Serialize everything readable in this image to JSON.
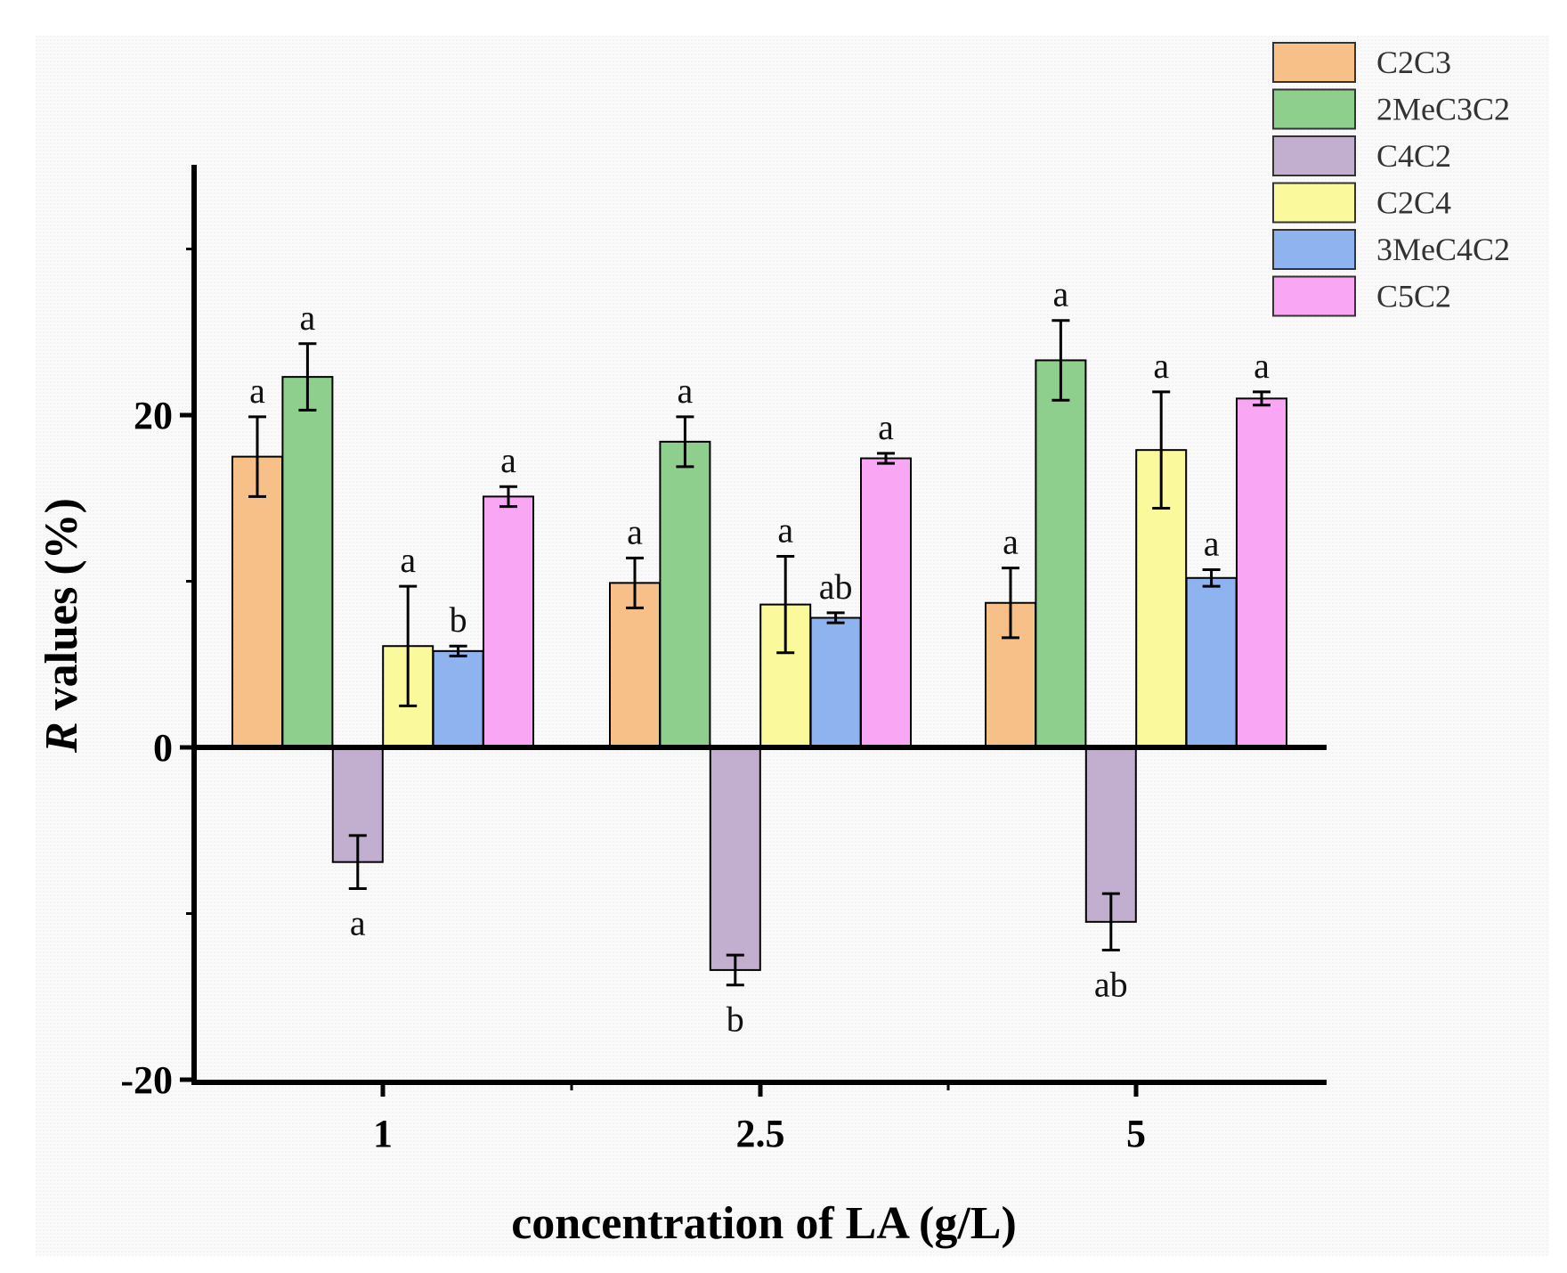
{
  "chart_data": {
    "type": "bar",
    "title": "",
    "xlabel": "concentration of LA (g/L)",
    "ylabel_italic": "R",
    "ylabel_rest": " values (%)",
    "ylim": [
      -20,
      35
    ],
    "yticks": [
      -20,
      0,
      20
    ],
    "ytick_labels": [
      "-20",
      "0",
      "20"
    ],
    "categories": [
      "1",
      "2.5",
      "5"
    ],
    "legend_position": "top-right",
    "grid": false,
    "series": [
      {
        "name": "C2C3",
        "color": "#F8C089",
        "values": [
          17.5,
          9.9,
          8.7
        ],
        "errors": [
          2.4,
          1.5,
          2.1
        ],
        "letters": [
          "a",
          "a",
          "a"
        ]
      },
      {
        "name": "2MeC3C2",
        "color": "#8ECF8E",
        "values": [
          22.3,
          18.4,
          23.3
        ],
        "errors": [
          2.0,
          1.5,
          2.4
        ],
        "letters": [
          "a",
          "a",
          "a"
        ]
      },
      {
        "name": "C4C2",
        "color": "#C2AECF",
        "values": [
          -6.9,
          -13.4,
          -10.5
        ],
        "errors": [
          1.6,
          0.9,
          1.7
        ],
        "letters": [
          "a",
          "b",
          "ab"
        ]
      },
      {
        "name": "C2C4",
        "color": "#FAFA9C",
        "values": [
          6.1,
          8.6,
          17.9
        ],
        "errors": [
          3.6,
          2.9,
          3.5
        ],
        "letters": [
          "a",
          "a",
          "a"
        ]
      },
      {
        "name": "3MeC4C2",
        "color": "#8FB3EE",
        "values": [
          5.8,
          7.8,
          10.2
        ],
        "errors": [
          0.3,
          0.3,
          0.5
        ],
        "letters": [
          "b",
          "ab",
          "a"
        ]
      },
      {
        "name": "C5C2",
        "color": "#F9A6F5",
        "values": [
          15.1,
          17.4,
          21.0
        ],
        "errors": [
          0.6,
          0.3,
          0.4
        ],
        "letters": [
          "a",
          "a",
          "a"
        ]
      }
    ]
  }
}
